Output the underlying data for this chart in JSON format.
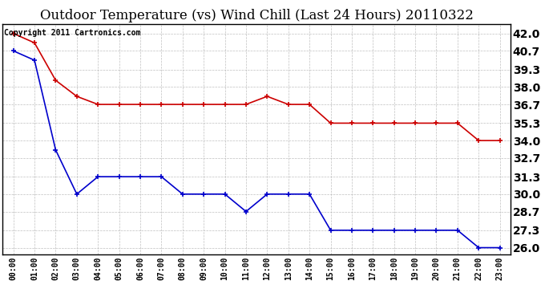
{
  "title": "Outdoor Temperature (vs) Wind Chill (Last 24 Hours) 20110322",
  "copyright_text": "Copyright 2011 Cartronics.com",
  "x_labels": [
    "00:00",
    "01:00",
    "02:00",
    "03:00",
    "04:00",
    "05:00",
    "06:00",
    "07:00",
    "08:00",
    "09:00",
    "10:00",
    "11:00",
    "12:00",
    "13:00",
    "14:00",
    "15:00",
    "16:00",
    "17:00",
    "18:00",
    "19:00",
    "20:00",
    "21:00",
    "22:00",
    "23:00"
  ],
  "red_data": [
    42.0,
    41.3,
    38.5,
    37.3,
    36.7,
    36.7,
    36.7,
    36.7,
    36.7,
    36.7,
    36.7,
    36.7,
    37.3,
    36.7,
    36.7,
    35.3,
    35.3,
    35.3,
    35.3,
    35.3,
    35.3,
    35.3,
    34.0,
    34.0
  ],
  "blue_data": [
    40.7,
    40.0,
    33.3,
    30.0,
    31.3,
    31.3,
    31.3,
    31.3,
    30.0,
    30.0,
    30.0,
    28.7,
    30.0,
    30.0,
    30.0,
    27.3,
    27.3,
    27.3,
    27.3,
    27.3,
    27.3,
    27.3,
    26.0,
    26.0
  ],
  "y_ticks": [
    26.0,
    27.3,
    28.7,
    30.0,
    31.3,
    32.7,
    34.0,
    35.3,
    36.7,
    38.0,
    39.3,
    40.7,
    42.0
  ],
  "ylim": [
    25.5,
    42.7
  ],
  "red_color": "#cc0000",
  "blue_color": "#0000cc",
  "background_color": "#ffffff",
  "grid_color": "#b0b0b0",
  "title_fontsize": 12,
  "copyright_fontsize": 7,
  "ytick_fontsize": 10,
  "xtick_fontsize": 7
}
